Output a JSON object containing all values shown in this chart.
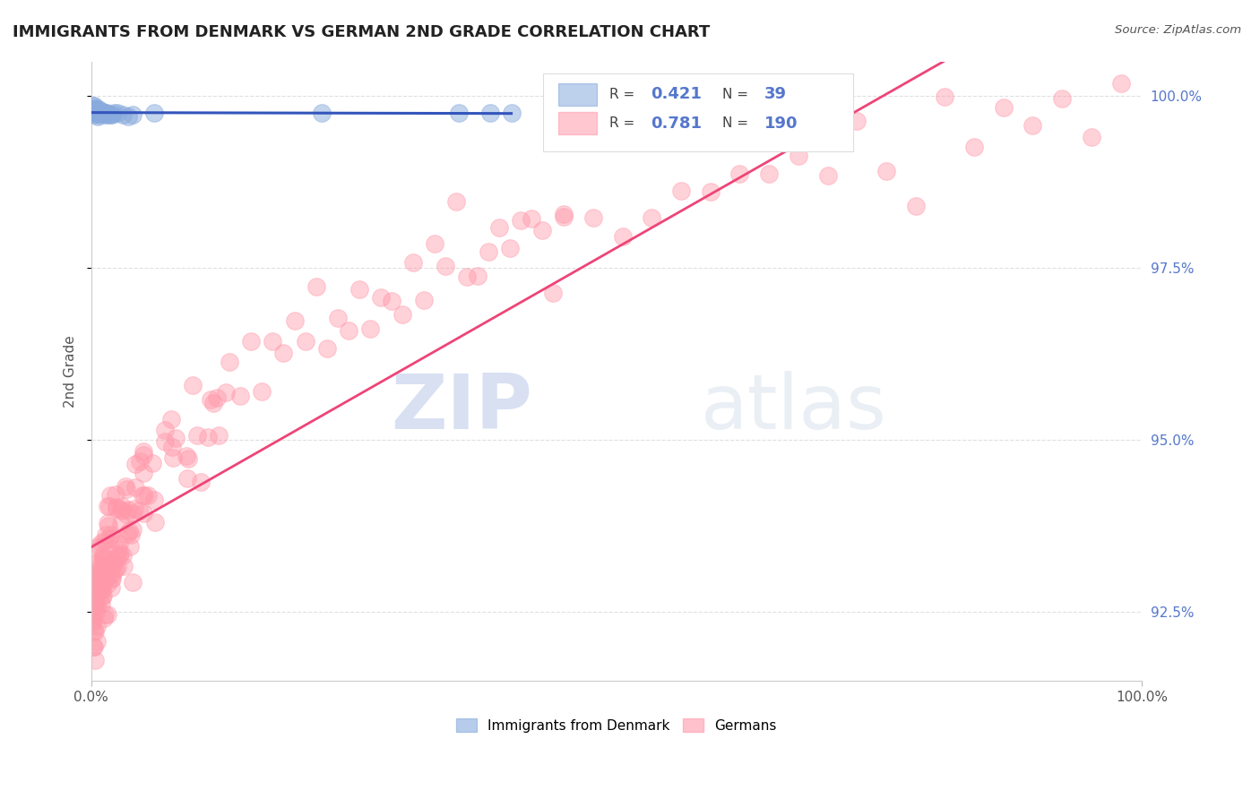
{
  "title": "IMMIGRANTS FROM DENMARK VS GERMAN 2ND GRADE CORRELATION CHART",
  "source_text": "Source: ZipAtlas.com",
  "ylabel": "2nd Grade",
  "watermark_zip": "ZIP",
  "watermark_atlas": "atlas",
  "background_color": "#ffffff",
  "grid_color": "#cccccc",
  "title_color": "#222222",
  "axis_label_color": "#555555",
  "right_axis_color": "#5577cc",
  "scatter_denmark_color": "#88aadd",
  "scatter_germany_color": "#ff99aa",
  "trend_denmark_color": "#3355bb",
  "trend_germany_color": "#ee4477",
  "xlim": [
    0.0,
    1.0
  ],
  "ylim": [
    0.915,
    1.005
  ],
  "y_ticks": [
    0.925,
    0.95,
    0.975,
    1.0
  ],
  "y_tick_labels": [
    "92.5%",
    "95.0%",
    "97.5%",
    "100.0%"
  ],
  "x_tick_labels": [
    "0.0%",
    "100.0%"
  ],
  "legend_dk_R": "0.421",
  "legend_dk_N": "39",
  "legend_de_R": "0.781",
  "legend_de_N": "190"
}
